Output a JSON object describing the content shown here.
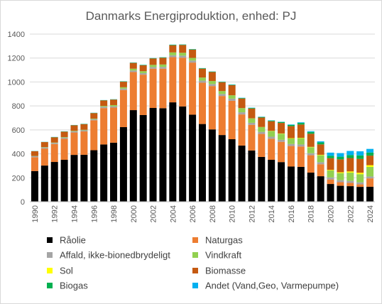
{
  "chart_data": {
    "type": "bar",
    "stacked": true,
    "title": "Danmarks Energiproduktion, enhed: PJ",
    "ylim": [
      0,
      1400
    ],
    "yticks": [
      0,
      200,
      400,
      600,
      800,
      1000,
      1200,
      1400
    ],
    "grid": true,
    "legend": "bottom",
    "x": [
      1990,
      1991,
      1992,
      1993,
      1994,
      1995,
      1996,
      1997,
      1998,
      1999,
      2000,
      2001,
      2002,
      2003,
      2004,
      2005,
      2006,
      2007,
      2008,
      2009,
      2010,
      2011,
      2012,
      2013,
      2014,
      2015,
      2016,
      2017,
      2018,
      2019,
      2020,
      2021,
      2022,
      2023,
      2024
    ],
    "x_tick_labels": [
      "1990",
      "1992",
      "1994",
      "1996",
      "1998",
      "2000",
      "2002",
      "2004",
      "2006",
      "2008",
      "2010",
      "2012",
      "2014",
      "2016",
      "2018",
      "2020",
      "2022",
      "2024"
    ],
    "series": [
      {
        "name": "Råolie",
        "color": "#000000",
        "values": [
          256,
          302,
          332,
          350,
          391,
          392,
          430,
          478,
          493,
          623,
          765,
          724,
          783,
          781,
          830,
          796,
          727,
          649,
          604,
          557,
          522,
          469,
          428,
          374,
          350,
          331,
          294,
          291,
          243,
          213,
          148,
          133,
          130,
          124,
          125
        ]
      },
      {
        "name": "Naturgas",
        "color": "#ED7D31",
        "values": [
          116,
          142,
          150,
          176,
          187,
          195,
          250,
          304,
          293,
          310,
          318,
          337,
          328,
          330,
          377,
          407,
          435,
          345,
          362,
          326,
          321,
          260,
          214,
          192,
          176,
          169,
          171,
          170,
          145,
          100,
          38,
          30,
          27,
          21,
          70
        ]
      },
      {
        "name": "Affald, ikke-bionedbrydeligt",
        "color": "#A5A5A5",
        "values": [
          8,
          9,
          9,
          10,
          10,
          10,
          10,
          11,
          11,
          12,
          13,
          13,
          14,
          15,
          16,
          17,
          17,
          17,
          17,
          17,
          18,
          18,
          17,
          17,
          17,
          17,
          17,
          17,
          17,
          17,
          17,
          17,
          17,
          17,
          16
        ]
      },
      {
        "name": "Vindkraft",
        "color": "#92D050",
        "values": [
          2,
          3,
          3,
          4,
          4,
          4,
          4,
          7,
          10,
          11,
          15,
          16,
          18,
          20,
          24,
          24,
          22,
          26,
          25,
          24,
          28,
          35,
          37,
          40,
          47,
          51,
          46,
          53,
          50,
          58,
          58,
          59,
          69,
          68,
          80
        ]
      },
      {
        "name": "Sol",
        "color": "#FFFF00",
        "values": [
          0,
          0,
          0,
          0,
          0,
          0,
          0,
          0,
          0,
          0,
          0,
          0,
          0,
          0,
          0,
          0,
          0,
          0,
          0,
          0,
          0,
          0,
          0.4,
          1,
          2,
          2,
          3,
          3,
          3,
          4,
          5,
          7,
          10,
          12,
          14
        ]
      },
      {
        "name": "Biomasse",
        "color": "#C55A11",
        "values": [
          40,
          42,
          44,
          45,
          46,
          47,
          46,
          46,
          46,
          46,
          48,
          49,
          53,
          56,
          60,
          65,
          69,
          74,
          75,
          74,
          84,
          80,
          82,
          79,
          80,
          88,
          100,
          111,
          110,
          87,
          98,
          108,
          112,
          116,
          80
        ]
      },
      {
        "name": "Biogas",
        "color": "#00B050",
        "values": [
          1,
          1,
          2,
          2,
          2,
          2,
          2,
          2,
          2,
          3,
          3,
          3,
          3,
          4,
          4,
          4,
          4,
          4,
          4,
          4,
          4,
          4,
          5,
          5,
          6,
          8,
          10,
          13,
          15,
          17,
          20,
          22,
          25,
          29,
          26
        ]
      },
      {
        "name": "Andet (Vand,Geo, Varmepumpe)",
        "color": "#00B0F0",
        "values": [
          1,
          1,
          1,
          1,
          1,
          1,
          1,
          1,
          1,
          1,
          1,
          1,
          1,
          1,
          1,
          1,
          1,
          1,
          1,
          1,
          2,
          2,
          2,
          2,
          2,
          2,
          4,
          5,
          6,
          8,
          26,
          30,
          34,
          34,
          30
        ]
      }
    ]
  }
}
